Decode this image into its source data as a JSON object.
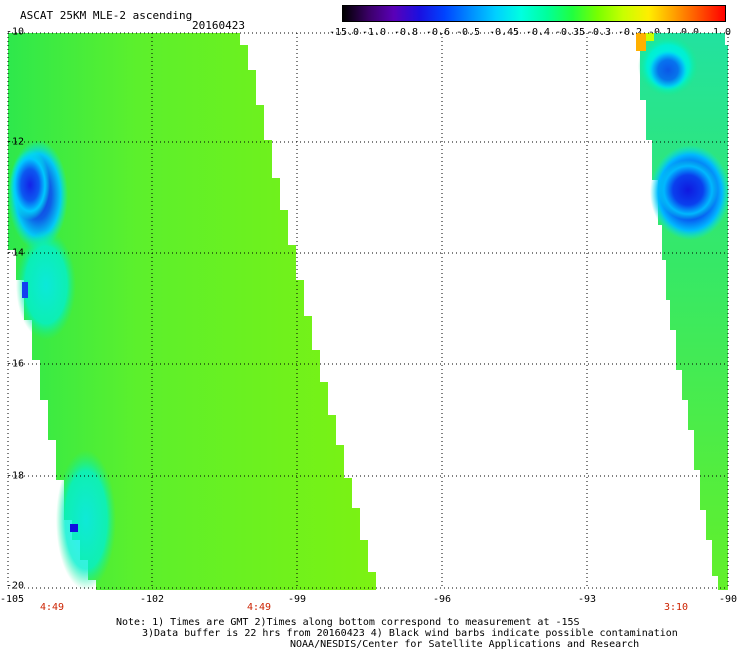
{
  "header": {
    "title": "ASCAT 25KM MLE-2 ascending",
    "date": "20160423"
  },
  "colorbar": {
    "labels": [
      "-15.0",
      "-1.0",
      "-0.8",
      "-0.6",
      "-0.5",
      "-0.45",
      "-0.4",
      "-0.35",
      "-0.3",
      "-0.2",
      "-0.1",
      "0.0",
      "1.0"
    ],
    "colors": [
      "#000000",
      "#3a0066",
      "#5a00b8",
      "#1a10e0",
      "#0044ff",
      "#008cff",
      "#00d0ff",
      "#00ffe0",
      "#00ff9c",
      "#20ff40",
      "#78ff00",
      "#c8ff00",
      "#ffee00",
      "#ffa000",
      "#ff5000",
      "#ff0000"
    ]
  },
  "map": {
    "lat_labels": [
      "-10",
      "-12",
      "-14",
      "-16",
      "-18",
      "-20"
    ],
    "lon_labels": [
      "-105",
      "-102",
      "-99",
      "-96",
      "-93",
      "-90"
    ],
    "time_labels": [
      "4:49",
      "4:49",
      "3:10"
    ]
  },
  "notes": {
    "line1": "Note: 1) Times are GMT 2)Times along bottom correspond to measurement at -15S",
    "line2": "3)Data buffer is 22 hrs from 20160423 4) Black wind barbs indicate possible contamination",
    "line3": "NOAA/NESDIS/Center for Satellite Applications and Research"
  }
}
